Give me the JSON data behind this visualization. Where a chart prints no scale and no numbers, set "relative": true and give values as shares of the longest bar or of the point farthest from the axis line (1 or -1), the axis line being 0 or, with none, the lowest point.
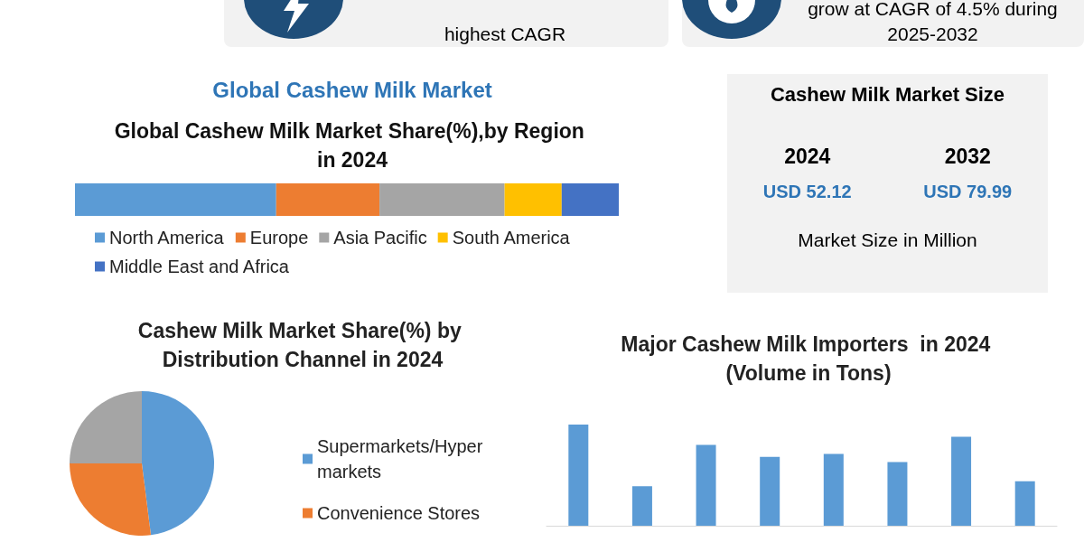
{
  "chart_data": [
    {
      "type": "other",
      "annotations": [
        "highest CAGR",
        "grow at CAGR of 4.5% during 2025-2032"
      ]
    },
    {
      "type": "bar",
      "title": "Global Cashew Milk Market",
      "subtitle": "Global Cashew Milk Market Share(%),by Region in 2024",
      "orientation": "horizontal",
      "stacked": true,
      "relative": true,
      "legend": "bottom",
      "categories": [
        null
      ],
      "series": [
        {
          "name": "North America",
          "color": "#5b9bd5",
          "values": [
            0.37
          ]
        },
        {
          "name": "Europe",
          "color": "#ed7d31",
          "values": [
            0.19
          ]
        },
        {
          "name": "Asia Pacific",
          "color": "#a5a5a5",
          "values": [
            0.23
          ]
        },
        {
          "name": "South America",
          "color": "#ffc000",
          "values": [
            0.105
          ]
        },
        {
          "name": "Middle East and Africa",
          "color": "#4472c4",
          "values": [
            0.105
          ]
        }
      ]
    },
    {
      "type": "other",
      "title": "Cashew Milk Market Size",
      "annotations": [
        "2024",
        "2032",
        "USD 52.12",
        "USD 79.99",
        "Market Size in Million"
      ]
    },
    {
      "type": "pie",
      "title": "Cashew Milk Market Share(%) by Distribution Channel in 2024",
      "legend": "right",
      "categories": [
        "Supermarkets/Hyper markets",
        "Convenience Stores",
        null
      ],
      "values": [
        48,
        27,
        25
      ],
      "colors": [
        "#5b9bd5",
        "#ed7d31",
        "#a5a5a5"
      ]
    },
    {
      "type": "bar",
      "title": "Major Cashew Milk Importers  in 2024 (Volume in Tons)",
      "relative": true,
      "categories": [
        null,
        null,
        null,
        null,
        null,
        null,
        null,
        null
      ],
      "series": [
        {
          "color": "#5b9bd5",
          "values": [
            1,
            0.39,
            0.8,
            0.68,
            0.71,
            0.63,
            0.88,
            0.44
          ]
        }
      ]
    }
  ]
}
